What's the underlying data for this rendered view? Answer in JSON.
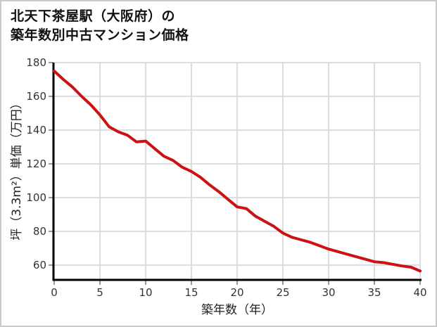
{
  "page": {
    "title_line1": "北天下茶屋駅（大阪府）の",
    "title_line2": "築年数別中古マンション価格"
  },
  "chart_data": {
    "type": "line",
    "title": "北天下茶屋駅（大阪府）の 築年数別中古マンション価格",
    "xlabel": "築年数（年）",
    "ylabel": "坪（3.3m²）単価（万円）",
    "x": [
      0,
      1,
      2,
      3,
      4,
      5,
      6,
      7,
      8,
      9,
      10,
      11,
      12,
      13,
      14,
      15,
      16,
      17,
      18,
      19,
      20,
      21,
      22,
      23,
      24,
      25,
      26,
      27,
      28,
      29,
      30,
      31,
      32,
      33,
      34,
      35,
      36,
      37,
      38,
      39,
      40
    ],
    "series": [
      {
        "name": "坪単価（万円）",
        "values": [
          175,
          170,
          165.5,
          160,
          155,
          149,
          142,
          139,
          137,
          133,
          133.5,
          129,
          124.5,
          122,
          118,
          115.5,
          112,
          107.5,
          103.5,
          99,
          94.5,
          93.5,
          89,
          86,
          83,
          79,
          76.5,
          75,
          73.5,
          71.5,
          69.5,
          68,
          66.5,
          65,
          63.5,
          62,
          61.5,
          60.5,
          59.5,
          58.8,
          56.5
        ]
      }
    ],
    "x_ticks": [
      0,
      5,
      10,
      15,
      20,
      25,
      30,
      35,
      40
    ],
    "y_ticks": [
      60,
      80,
      100,
      120,
      140,
      160,
      180
    ],
    "xlim": [
      0,
      40
    ],
    "ylim": [
      52,
      180
    ],
    "grid": true,
    "legend": "none",
    "colors": {
      "line": "#cc1212",
      "axis": "#000000",
      "grid": "#d9d9d9",
      "tick": "#999999",
      "tick_label": "#333333",
      "axis_label": "#222222",
      "title": "#111111"
    }
  }
}
